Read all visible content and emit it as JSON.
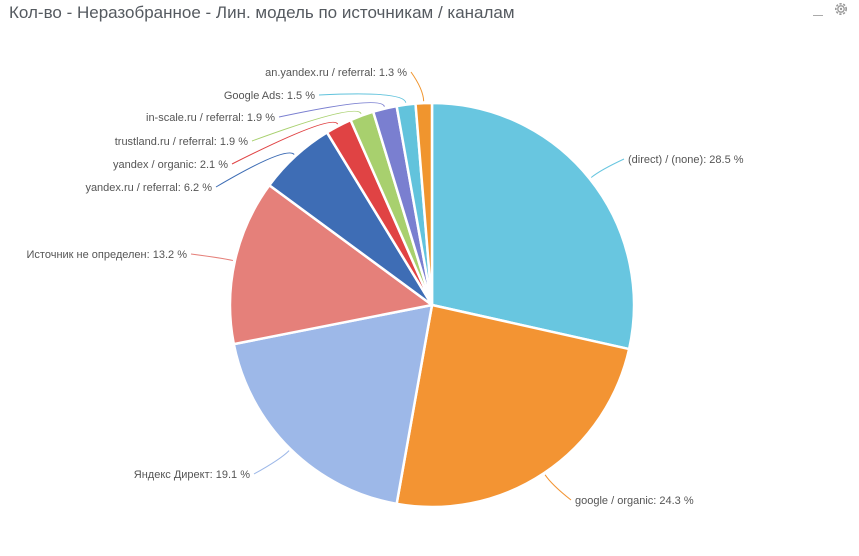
{
  "panel": {
    "title": "Кол-во - Неразобранное - Лин. модель по источникам / каналам",
    "minimize_icon": "minimize-icon",
    "settings_icon": "gear-icon"
  },
  "chart_data": {
    "type": "pie",
    "start": "12 o'clock, clockwise",
    "slices": [
      {
        "label": "(direct) / (none)",
        "value": 28.5,
        "color": "#68c6e0"
      },
      {
        "label": "google / organic",
        "value": 24.3,
        "color": "#f39433"
      },
      {
        "label": "Яндекс Директ",
        "value": 19.1,
        "color": "#9db8e8"
      },
      {
        "label": "Источник не определен",
        "value": 13.2,
        "color": "#e5807a"
      },
      {
        "label": "yandex.ru / referral",
        "value": 6.2,
        "color": "#3e6db5"
      },
      {
        "label": "yandex / organic",
        "value": 2.1,
        "color": "#e04344"
      },
      {
        "label": "trustland.ru / referral",
        "value": 1.9,
        "color": "#a8d06e"
      },
      {
        "label": "in-scale.ru / referral",
        "value": 1.9,
        "color": "#7a7fd0"
      },
      {
        "label": "Google Ads",
        "value": 1.5,
        "color": "#62c3dc"
      },
      {
        "label": "an.yandex.ru / referral",
        "value": 1.3,
        "color": "#f0952e"
      }
    ]
  }
}
